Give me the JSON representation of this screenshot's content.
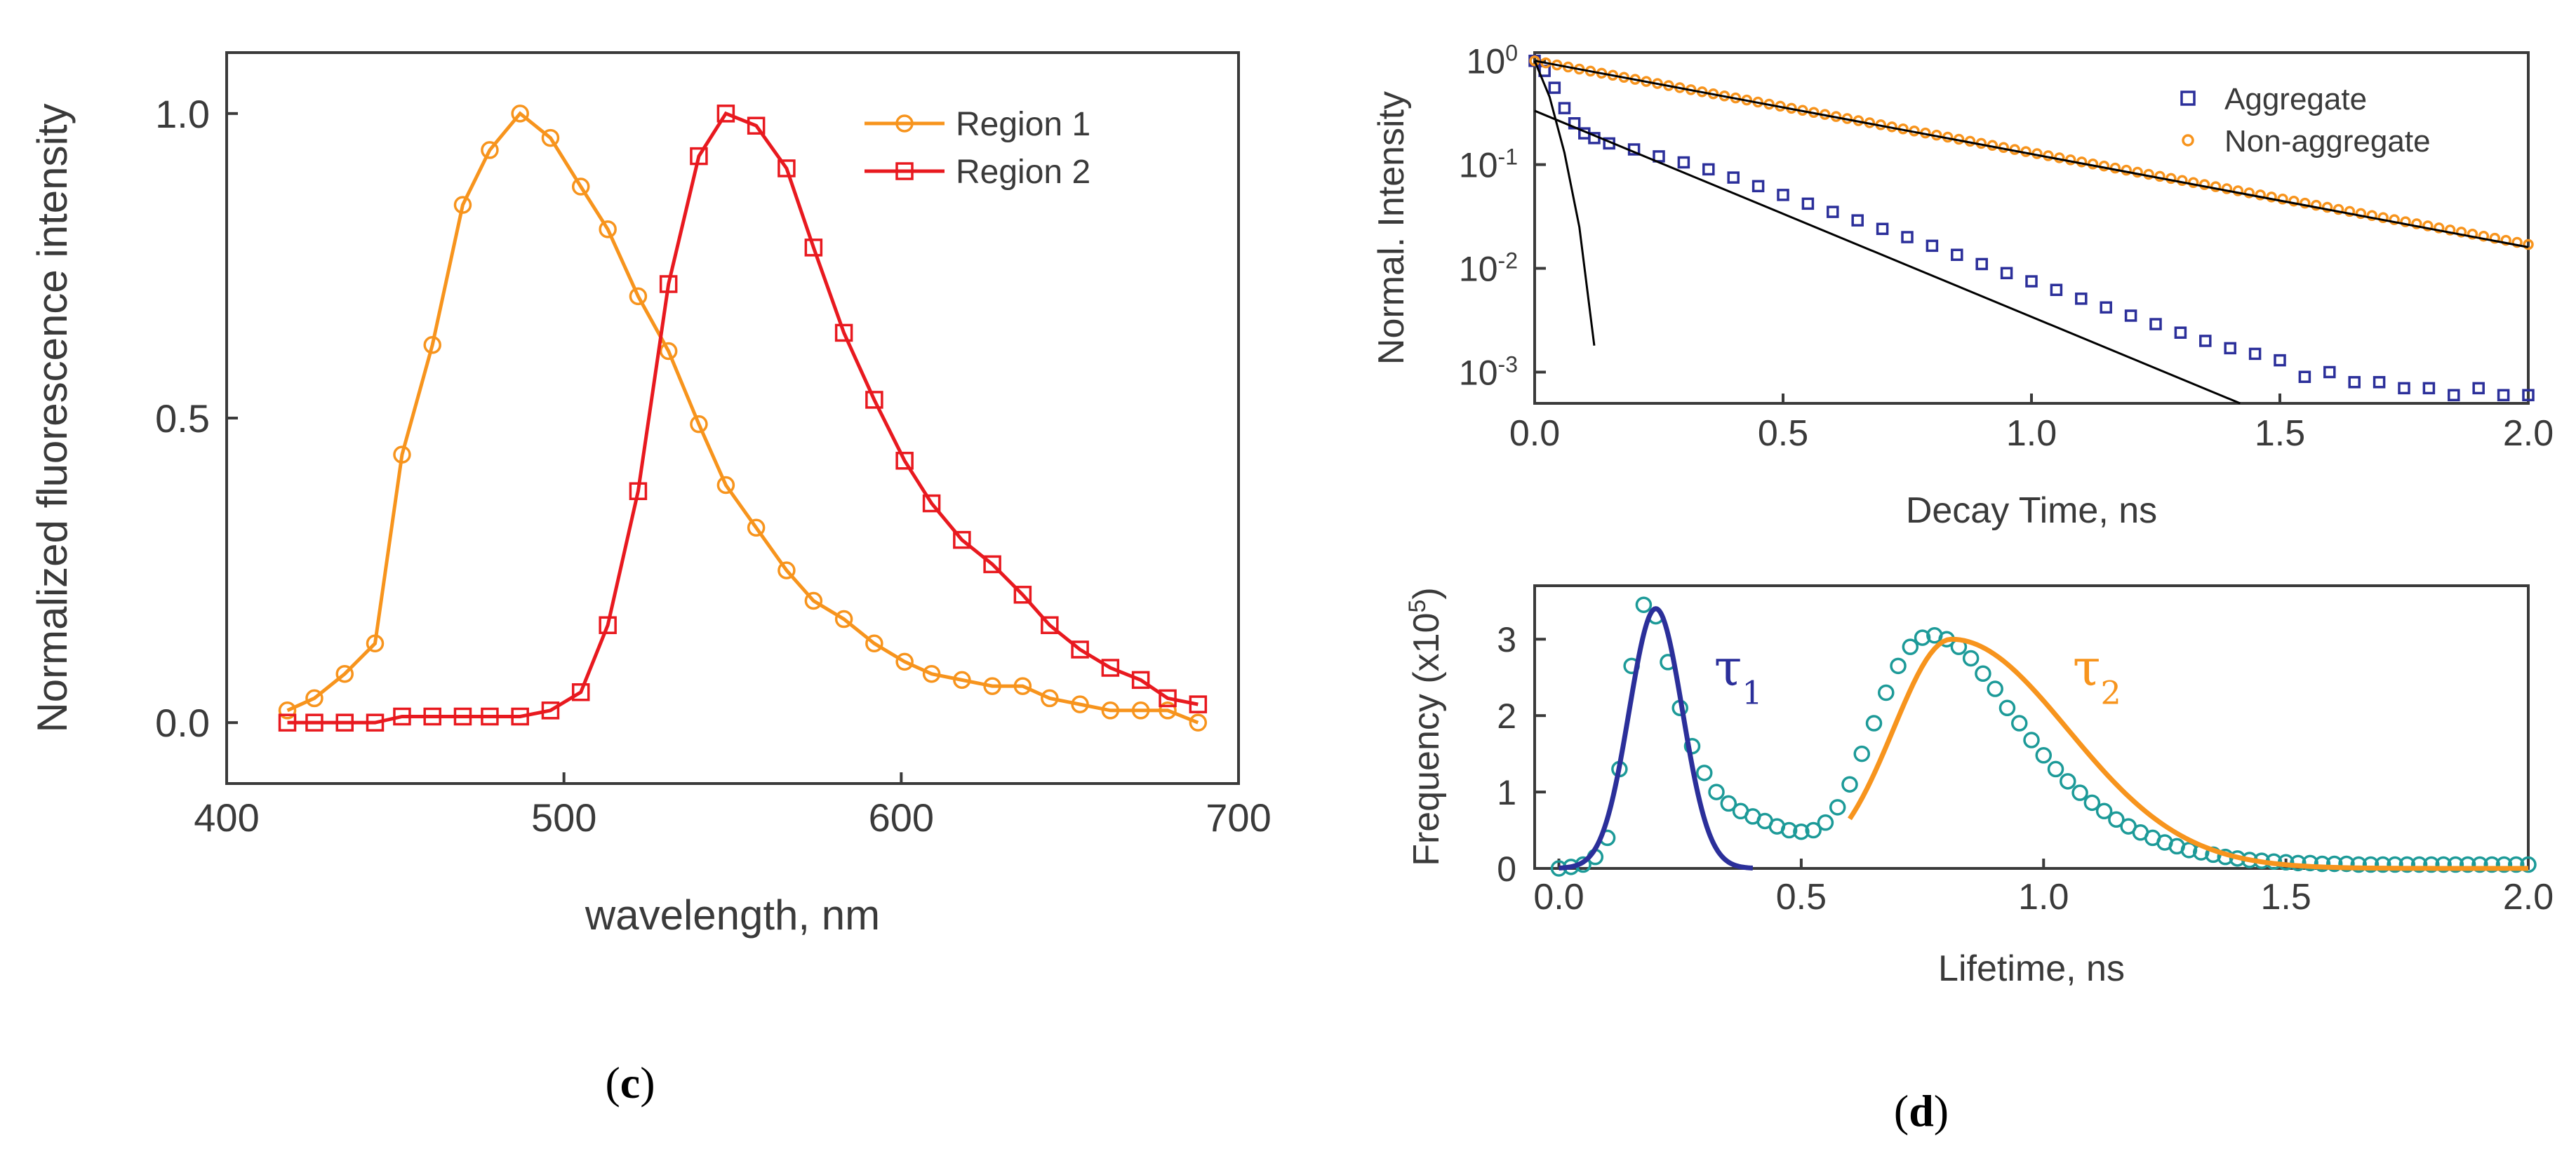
{
  "panels": {
    "c": "c",
    "d": "d"
  },
  "chart_data": [
    {
      "id": "c",
      "type": "line",
      "xlabel": "wavelength, nm",
      "ylabel": "Normalized fluorescence intensity",
      "xlim": [
        400,
        700
      ],
      "ylim": [
        -0.1,
        1.1
      ],
      "xticks": [
        400,
        500,
        600,
        700
      ],
      "yticks": [
        0.0,
        0.5,
        1.0
      ],
      "ytick_labels": [
        "0.0",
        "0.5",
        "1.0"
      ],
      "legend_position": "top-right",
      "series": [
        {
          "name": "Region 1",
          "color": "#f7941d",
          "marker": "circle",
          "x": [
            418,
            426,
            435,
            444,
            452,
            461,
            470,
            478,
            487,
            496,
            505,
            513,
            522,
            531,
            540,
            548,
            557,
            566,
            574,
            583,
            592,
            601,
            609,
            618,
            627,
            636,
            644,
            653,
            662,
            671,
            679,
            688
          ],
          "y": [
            0.02,
            0.04,
            0.08,
            0.13,
            0.44,
            0.62,
            0.85,
            0.94,
            1.0,
            0.96,
            0.88,
            0.81,
            0.7,
            0.61,
            0.49,
            0.39,
            0.32,
            0.25,
            0.2,
            0.17,
            0.13,
            0.1,
            0.08,
            0.07,
            0.06,
            0.06,
            0.04,
            0.03,
            0.02,
            0.02,
            0.02,
            0.0
          ]
        },
        {
          "name": "Region 2",
          "color": "#e8191f",
          "marker": "square",
          "x": [
            418,
            426,
            435,
            444,
            452,
            461,
            470,
            478,
            487,
            496,
            505,
            513,
            522,
            531,
            540,
            548,
            557,
            566,
            574,
            583,
            592,
            601,
            609,
            618,
            627,
            636,
            644,
            653,
            662,
            671,
            679,
            688
          ],
          "y": [
            0.0,
            0.0,
            0.0,
            0.0,
            0.01,
            0.01,
            0.01,
            0.01,
            0.01,
            0.02,
            0.05,
            0.16,
            0.38,
            0.72,
            0.93,
            1.0,
            0.98,
            0.91,
            0.78,
            0.64,
            0.53,
            0.43,
            0.36,
            0.3,
            0.26,
            0.21,
            0.16,
            0.12,
            0.09,
            0.07,
            0.04,
            0.03
          ]
        }
      ]
    },
    {
      "id": "d-top",
      "type": "scatter",
      "xlabel": "Decay Time, ns",
      "ylabel": "Normal. Intensity",
      "xlim": [
        0,
        2
      ],
      "ylim": [
        0.0005,
        1.2
      ],
      "yscale": "log",
      "xticks": [
        0.0,
        0.5,
        1.0,
        1.5,
        2.0
      ],
      "xtick_labels": [
        "0.0",
        "0.5",
        "1.0",
        "1.5",
        "2.0"
      ],
      "yticks": [
        "10^0",
        "10^-1",
        "10^-2",
        "10^-3"
      ],
      "legend_position": "top-right",
      "series": [
        {
          "name": "Aggregate",
          "color": "#2b2f9a",
          "marker": "square",
          "x": [
            0.0,
            0.02,
            0.04,
            0.06,
            0.08,
            0.1,
            0.12,
            0.15,
            0.2,
            0.25,
            0.3,
            0.35,
            0.4,
            0.45,
            0.5,
            0.55,
            0.6,
            0.65,
            0.7,
            0.75,
            0.8,
            0.85,
            0.9,
            0.95,
            1.0,
            1.05,
            1.1,
            1.15,
            1.2,
            1.25,
            1.3,
            1.35,
            1.4,
            1.45,
            1.5,
            1.55,
            1.6,
            1.65,
            1.7,
            1.75,
            1.8,
            1.85,
            1.9,
            1.95,
            2.0
          ],
          "y": [
            1.0,
            0.8,
            0.55,
            0.35,
            0.25,
            0.2,
            0.18,
            0.16,
            0.14,
            0.12,
            0.105,
            0.09,
            0.075,
            0.062,
            0.051,
            0.042,
            0.035,
            0.029,
            0.024,
            0.02,
            0.0165,
            0.0135,
            0.011,
            0.009,
            0.0075,
            0.0062,
            0.0051,
            0.0042,
            0.0035,
            0.0029,
            0.0024,
            0.002,
            0.0017,
            0.0015,
            0.0013,
            0.0009,
            0.001,
            0.0008,
            0.0008,
            0.0007,
            0.0007,
            0.0006,
            0.0007,
            0.0006,
            0.0006
          ]
        },
        {
          "name": "Non-aggregate",
          "color": "#f7941d",
          "marker": "circle",
          "x_start": 0.0,
          "x_end": 2.0,
          "count": 90,
          "y_start": 1.0,
          "y_end": 0.017
        },
        {
          "name": "",
          "color": "#000000",
          "marker": "none",
          "x": [
            0.0,
            2.0
          ],
          "y": [
            1.0,
            0.016
          ]
        },
        {
          "name": "",
          "color": "#000000",
          "marker": "none",
          "x": [
            0.0,
            1.42
          ],
          "y": [
            0.33,
            0.0005
          ]
        },
        {
          "name": "",
          "color": "#000000",
          "marker": "none",
          "x": [
            0.0,
            0.03,
            0.06,
            0.09,
            0.12
          ],
          "y": [
            1.0,
            0.45,
            0.13,
            0.025,
            0.0018
          ]
        }
      ]
    },
    {
      "id": "d-bottom",
      "type": "scatter",
      "xlabel": "Lifetime, ns",
      "ylabel": "Frequency (x10",
      "ylabel_sup": "5",
      "ylabel_end": ")",
      "xlim": [
        -0.05,
        2.0
      ],
      "ylim": [
        0,
        3.7
      ],
      "xticks": [
        0.0,
        0.5,
        1.0,
        1.5,
        2.0
      ],
      "xtick_labels": [
        "0.0",
        "0.5",
        "1.0",
        "1.5",
        "2.0"
      ],
      "yticks": [
        0,
        1,
        2,
        3
      ],
      "annotations": [
        {
          "text": "τ",
          "sub": "1",
          "color": "#2b2f9a",
          "x": 0.32,
          "y": 2.4
        },
        {
          "text": "τ",
          "sub": "2",
          "color": "#f7941d",
          "x": 1.06,
          "y": 2.4
        }
      ],
      "series": [
        {
          "name": "",
          "color": "#1c9a98",
          "marker": "circle",
          "x": [
            0.0,
            0.025,
            0.05,
            0.075,
            0.1,
            0.125,
            0.15,
            0.175,
            0.2,
            0.225,
            0.25,
            0.275,
            0.3,
            0.325,
            0.35,
            0.375,
            0.4,
            0.425,
            0.45,
            0.475,
            0.5,
            0.525,
            0.55,
            0.575,
            0.6,
            0.625,
            0.65,
            0.675,
            0.7,
            0.725,
            0.75,
            0.775,
            0.8,
            0.825,
            0.85,
            0.875,
            0.9,
            0.925,
            0.95,
            0.975,
            1.0,
            1.025,
            1.05,
            1.075,
            1.1,
            1.125,
            1.15,
            1.175,
            1.2,
            1.225,
            1.25,
            1.275,
            1.3,
            1.325,
            1.35,
            1.375,
            1.4,
            1.425,
            1.45,
            1.475,
            1.5,
            1.525,
            1.55,
            1.575,
            1.6,
            1.625,
            1.65,
            1.675,
            1.7,
            1.725,
            1.75,
            1.775,
            1.8,
            1.825,
            1.85,
            1.875,
            1.9,
            1.925,
            1.95,
            1.975,
            2.0
          ],
          "y": [
            0.0,
            0.02,
            0.05,
            0.15,
            0.4,
            1.3,
            2.65,
            3.45,
            3.3,
            2.7,
            2.1,
            1.6,
            1.25,
            1.0,
            0.85,
            0.75,
            0.68,
            0.62,
            0.55,
            0.5,
            0.48,
            0.5,
            0.6,
            0.8,
            1.1,
            1.5,
            1.9,
            2.3,
            2.65,
            2.9,
            3.02,
            3.05,
            3.0,
            2.9,
            2.75,
            2.55,
            2.35,
            2.1,
            1.9,
            1.68,
            1.48,
            1.3,
            1.14,
            0.99,
            0.86,
            0.75,
            0.64,
            0.55,
            0.47,
            0.4,
            0.34,
            0.29,
            0.24,
            0.21,
            0.18,
            0.15,
            0.13,
            0.11,
            0.1,
            0.09,
            0.08,
            0.07,
            0.07,
            0.06,
            0.06,
            0.06,
            0.05,
            0.05,
            0.05,
            0.05,
            0.05,
            0.05,
            0.05,
            0.05,
            0.05,
            0.05,
            0.05,
            0.05,
            0.05,
            0.05,
            0.05
          ]
        },
        {
          "name": "",
          "color": "#2b2f9a",
          "marker": "none",
          "gaussian": {
            "amp": 3.4,
            "mu": 0.2,
            "sigma": 0.055,
            "from": 0.0,
            "to": 0.4
          }
        },
        {
          "name": "",
          "color": "#f7941d",
          "marker": "none",
          "lognormal_fit": {
            "amp": 3.0,
            "mu": 0.81,
            "sigma_left": 0.12,
            "sigma_right": 0.24,
            "from": 0.6,
            "to": 2.0
          }
        }
      ]
    }
  ]
}
